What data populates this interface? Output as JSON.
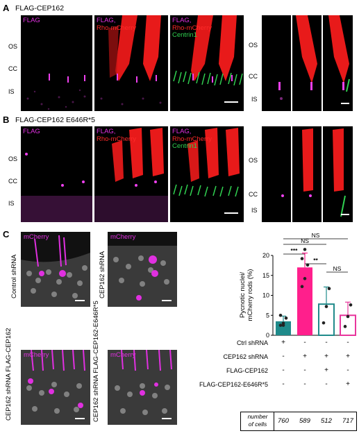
{
  "panel_a": {
    "letter": "A",
    "title": "FLAG-CEP162",
    "zones": [
      "OS",
      "CC",
      "IS"
    ],
    "tile1": [
      "FLAG"
    ],
    "tile2": [
      "FLAG,",
      "Rho-mCherry"
    ],
    "tile3": [
      "FLAG,",
      "Rho-mCherry",
      "Centrin1"
    ]
  },
  "panel_b": {
    "letter": "B",
    "title": "FLAG-CEP162 E646R*5",
    "zones": [
      "OS",
      "CC",
      "IS"
    ],
    "tile1": [
      "FLAG"
    ],
    "tile2": [
      "FLAG,",
      "Rho-mCherry"
    ],
    "tile3": [
      "FLAG,",
      "Rho-mCherry",
      "Centrin1"
    ]
  },
  "panel_c": {
    "letter": "C",
    "tile_label": "mCherry",
    "conditions": [
      "Control shRNA",
      "CEP162 shRNA",
      "CEP162 shRNA\nFLAG-CEP162",
      "CEP162 shRNA\nFLAG-CEP162-E646R*5"
    ]
  },
  "chart_data": {
    "type": "bar",
    "ylabel": "Pycnotic nuclei/\nmCherry rods (%)",
    "ylim": [
      0,
      20
    ],
    "yticks": [
      "0",
      "5",
      "10",
      "15",
      "20"
    ],
    "series": [
      {
        "values": [
          3.5,
          17.0,
          7.8,
          5.0
        ],
        "errors": [
          1.3,
          3.6,
          4.3,
          3.3
        ]
      }
    ],
    "points": [
      [
        2.5,
        3.0,
        4.3,
        5.0,
        2.5
      ],
      [
        12.2,
        14.2,
        17.6,
        19.2,
        21.5
      ],
      [
        3.1,
        7.2,
        11.7
      ],
      [
        2.2,
        4.7,
        7.6
      ]
    ],
    "colors": [
      "#1f8a8a",
      "#ff1f8c",
      "#1f8a8a",
      "#e8359c"
    ],
    "significance": [
      {
        "pair": [
          0,
          3
        ],
        "label": "NS"
      },
      {
        "pair": [
          0,
          2
        ],
        "label": "NS"
      },
      {
        "pair": [
          0,
          1
        ],
        "label": "***"
      },
      {
        "pair": [
          1,
          2
        ],
        "label": "**"
      },
      {
        "pair": [
          2,
          3
        ],
        "label": "NS"
      }
    ],
    "table_rows": [
      {
        "label": "Ctrl shRNA",
        "signs": [
          "+",
          "-",
          "-",
          "-"
        ]
      },
      {
        "label": "CEP162 shRNA",
        "signs": [
          "-",
          "+",
          "+",
          "+"
        ]
      },
      {
        "label": "FLAG-CEP162",
        "signs": [
          "-",
          "-",
          "+",
          "-"
        ]
      },
      {
        "label": "FLAG-CEP162-E646R*5",
        "signs": [
          "-",
          "-",
          "-",
          "+"
        ]
      }
    ],
    "cells_label": "number\nof cells",
    "cell_counts": [
      "760",
      "589",
      "512",
      "717"
    ]
  }
}
